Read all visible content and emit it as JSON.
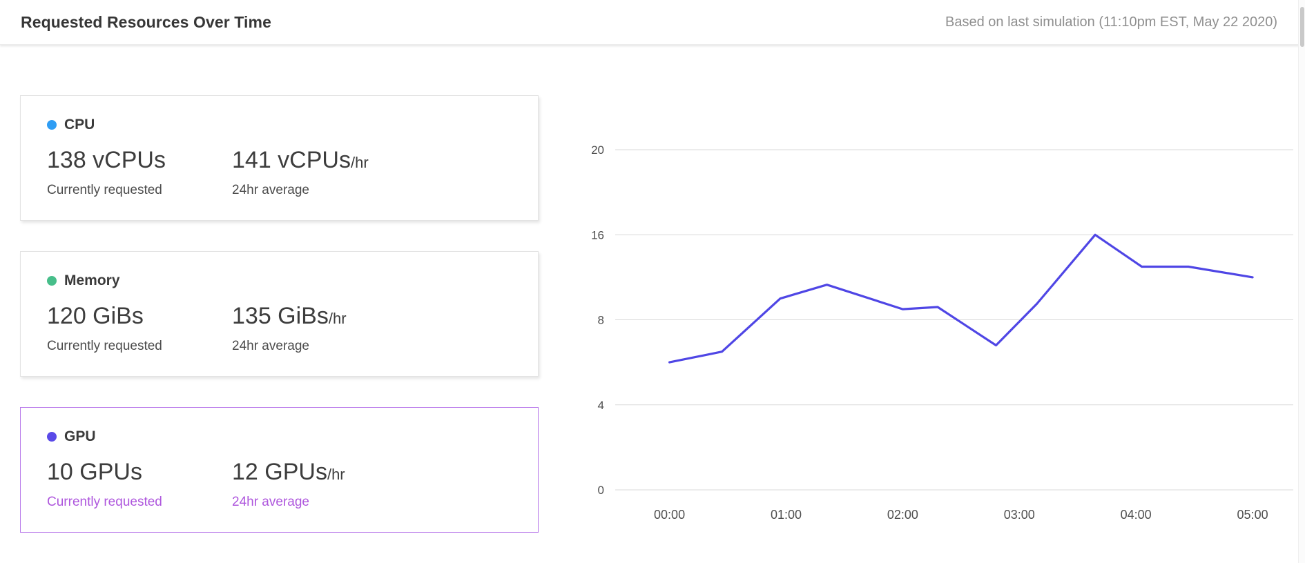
{
  "header": {
    "title": "Requested Resources Over Time",
    "meta": "Based on last simulation (11:10pm EST, May 22 2020)"
  },
  "cards": [
    {
      "id": "cpu",
      "label": "CPU",
      "dot_color": "#2f9df4",
      "current": {
        "value": "138 vCPUs",
        "suffix": "",
        "caption": "Currently requested"
      },
      "average": {
        "value": "141 vCPUs",
        "suffix": "/hr",
        "caption": "24hr average"
      },
      "selected": false
    },
    {
      "id": "memory",
      "label": "Memory",
      "dot_color": "#47be8a",
      "current": {
        "value": "120 GiBs",
        "suffix": "",
        "caption": "Currently requested"
      },
      "average": {
        "value": "135 GiBs",
        "suffix": "/hr",
        "caption": "24hr average"
      },
      "selected": false
    },
    {
      "id": "gpu",
      "label": "GPU",
      "dot_color": "#5a4ae8",
      "current": {
        "value": "10 GPUs",
        "suffix": "",
        "caption": "Currently requested"
      },
      "average": {
        "value": "12 GPUs",
        "suffix": "/hr",
        "caption": "24hr average"
      },
      "selected": true,
      "accent_color": "#ae56dd",
      "border_color": "#b878ea"
    }
  ],
  "chart_data": {
    "type": "line",
    "title": "",
    "xlabel": "",
    "ylabel": "",
    "grid": true,
    "legend": "none",
    "ylim": [
      0,
      20
    ],
    "y_ticks": [
      0,
      4,
      8,
      16,
      20
    ],
    "x_ticks": [
      "00:00",
      "01:00",
      "02:00",
      "03:00",
      "04:00",
      "05:00"
    ],
    "x_offset_frac": 0.08,
    "x_step_frac": 0.172,
    "line_color": "#4f46e5",
    "grid_color": "#d9d9d9",
    "tick_color": "#4f4f4f",
    "points": [
      {
        "h": 0.0,
        "v": 6
      },
      {
        "h": 0.45,
        "v": 6.5
      },
      {
        "h": 0.95,
        "v": 10
      },
      {
        "h": 1.35,
        "v": 11.3
      },
      {
        "h": 2.0,
        "v": 9
      },
      {
        "h": 2.3,
        "v": 9.2
      },
      {
        "h": 2.8,
        "v": 6.8
      },
      {
        "h": 3.15,
        "v": 9.5
      },
      {
        "h": 3.65,
        "v": 16
      },
      {
        "h": 4.05,
        "v": 13
      },
      {
        "h": 4.45,
        "v": 13
      },
      {
        "h": 5.0,
        "v": 12
      }
    ]
  }
}
